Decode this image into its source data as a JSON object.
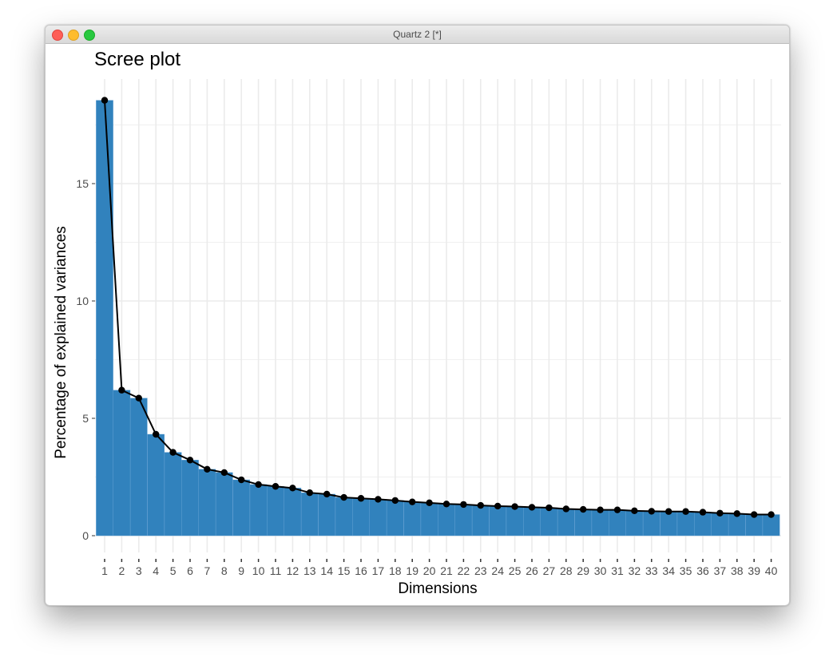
{
  "window": {
    "title": "Quartz 2 [*]"
  },
  "chart_data": {
    "type": "bar",
    "title": "Scree plot",
    "xlabel": "Dimensions",
    "ylabel": "Percentage of explained variances",
    "categories": [
      "1",
      "2",
      "3",
      "4",
      "5",
      "6",
      "7",
      "8",
      "9",
      "10",
      "11",
      "12",
      "13",
      "14",
      "15",
      "16",
      "17",
      "18",
      "19",
      "20",
      "21",
      "22",
      "23",
      "24",
      "25",
      "26",
      "27",
      "28",
      "29",
      "30",
      "31",
      "32",
      "33",
      "34",
      "35",
      "36",
      "37",
      "38",
      "39",
      "40"
    ],
    "values": [
      18.55,
      6.2,
      5.86,
      4.32,
      3.55,
      3.22,
      2.83,
      2.69,
      2.38,
      2.18,
      2.1,
      2.03,
      1.83,
      1.77,
      1.63,
      1.59,
      1.55,
      1.5,
      1.44,
      1.4,
      1.35,
      1.33,
      1.29,
      1.26,
      1.24,
      1.21,
      1.19,
      1.14,
      1.12,
      1.1,
      1.1,
      1.06,
      1.04,
      1.03,
      1.03,
      1.0,
      0.96,
      0.94,
      0.9,
      0.9
    ],
    "yticks": [
      0,
      5,
      10,
      15
    ],
    "ylim": [
      0,
      19.5
    ],
    "bar_color": "#3182bd",
    "line_color": "#000000",
    "grid": true
  }
}
